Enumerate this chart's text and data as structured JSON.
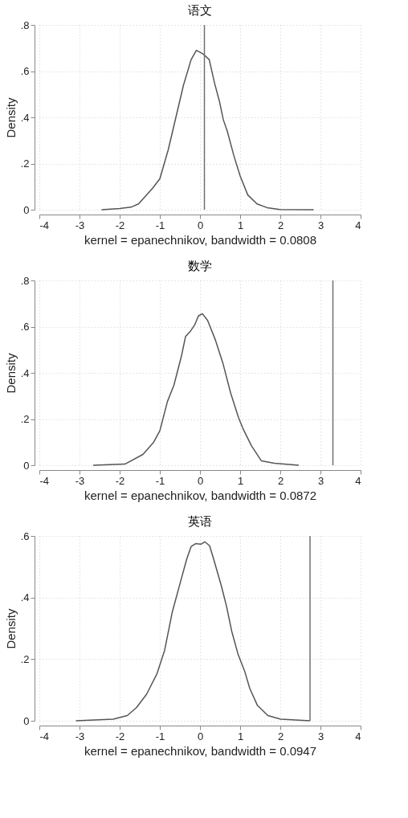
{
  "chart_data": [
    {
      "type": "line",
      "title": "语文",
      "xlabel": "kernel = epanechnikov, bandwidth = 0.0808",
      "ylabel": "Density",
      "xlim": [
        -4,
        4
      ],
      "ylim": [
        0,
        0.8
      ],
      "xticks": [
        -4,
        -3,
        -2,
        -1,
        0,
        1,
        2,
        3,
        4
      ],
      "yticks": [
        0,
        {
          "value": 0.2,
          "label": ".2"
        },
        {
          "value": 0.4,
          "label": ".4"
        },
        {
          "value": 0.6,
          "label": ".6"
        },
        {
          "value": 0.8,
          "label": ".8"
        }
      ],
      "grid": true,
      "legend": false,
      "line_style": "solid",
      "series": [
        {
          "color": "#555555",
          "x": [
            -2.45,
            -2.0,
            -1.72,
            -1.53,
            -1.18,
            -1.0,
            -0.79,
            -0.6,
            -0.41,
            -0.22,
            -0.09,
            0.07,
            0.23,
            0.36,
            0.49,
            0.58,
            0.68,
            0.84,
            1.0,
            1.19,
            1.42,
            1.67,
            1.99,
            2.83
          ],
          "values": [
            0,
            0.005,
            0.011,
            0.025,
            0.093,
            0.134,
            0.26,
            0.4,
            0.54,
            0.65,
            0.69,
            0.675,
            0.65,
            0.55,
            0.465,
            0.39,
            0.34,
            0.236,
            0.146,
            0.064,
            0.025,
            0.009,
            0.001,
            0
          ]
        }
      ],
      "ref_lines": [
        {
          "axis": "x",
          "value": 0.11,
          "color": "#707070"
        }
      ]
    },
    {
      "type": "line",
      "title": "数学",
      "xlabel": "kernel = epanechnikov, bandwidth = 0.0872",
      "ylabel": "Density",
      "xlim": [
        -4,
        4
      ],
      "ylim": [
        0,
        0.8
      ],
      "xticks": [
        -4,
        -3,
        -2,
        -1,
        0,
        1,
        2,
        3,
        4
      ],
      "yticks": [
        0,
        {
          "value": 0.2,
          "label": ".2"
        },
        {
          "value": 0.4,
          "label": ".4"
        },
        {
          "value": 0.6,
          "label": ".6"
        },
        {
          "value": 0.8,
          "label": ".8"
        }
      ],
      "grid": true,
      "legend": false,
      "line_style": "solid",
      "series": [
        {
          "color": "#555555",
          "x": [
            -2.66,
            -1.87,
            -1.42,
            -1.16,
            -1.0,
            -0.81,
            -0.65,
            -0.46,
            -0.36,
            -0.23,
            -0.13,
            -0.04,
            0.06,
            0.19,
            0.38,
            0.57,
            0.76,
            0.96,
            1.08,
            1.28,
            1.53,
            1.85,
            2.46
          ],
          "values": [
            0,
            0.005,
            0.047,
            0.098,
            0.149,
            0.276,
            0.346,
            0.474,
            0.557,
            0.582,
            0.608,
            0.646,
            0.656,
            0.627,
            0.544,
            0.442,
            0.315,
            0.206,
            0.155,
            0.085,
            0.019,
            0.009,
            0
          ]
        }
      ],
      "ref_lines": [
        {
          "axis": "x",
          "value": 3.31,
          "color": "#707070"
        }
      ]
    },
    {
      "type": "line",
      "title": "英语",
      "xlabel": "kernel = epanechnikov, bandwidth = 0.0947",
      "ylabel": "Density",
      "xlim": [
        -4,
        4
      ],
      "ylim": [
        0,
        0.6
      ],
      "xticks": [
        -4,
        -3,
        -2,
        -1,
        0,
        1,
        2,
        3,
        4
      ],
      "yticks": [
        0,
        {
          "value": 0.2,
          "label": ".2"
        },
        {
          "value": 0.4,
          "label": ".4"
        },
        {
          "value": 0.6,
          "label": ".6"
        }
      ],
      "grid": true,
      "legend": false,
      "line_style": "solid",
      "series": [
        {
          "color": "#555555",
          "x": [
            -3.09,
            -2.16,
            -1.81,
            -1.58,
            -1.33,
            -1.07,
            -0.88,
            -0.69,
            -0.49,
            -0.33,
            -0.22,
            -0.11,
            0.02,
            0.12,
            0.24,
            0.34,
            0.53,
            0.66,
            0.79,
            0.95,
            1.11,
            1.24,
            1.43,
            1.69,
            2.01,
            2.74
          ],
          "values": [
            0,
            0.005,
            0.017,
            0.043,
            0.086,
            0.153,
            0.229,
            0.353,
            0.449,
            0.525,
            0.566,
            0.575,
            0.573,
            0.581,
            0.568,
            0.525,
            0.439,
            0.372,
            0.291,
            0.215,
            0.162,
            0.105,
            0.05,
            0.017,
            0.005,
            0
          ]
        }
      ],
      "ref_lines": [
        {
          "axis": "x",
          "value": 2.74,
          "color": "#707070"
        }
      ]
    }
  ]
}
